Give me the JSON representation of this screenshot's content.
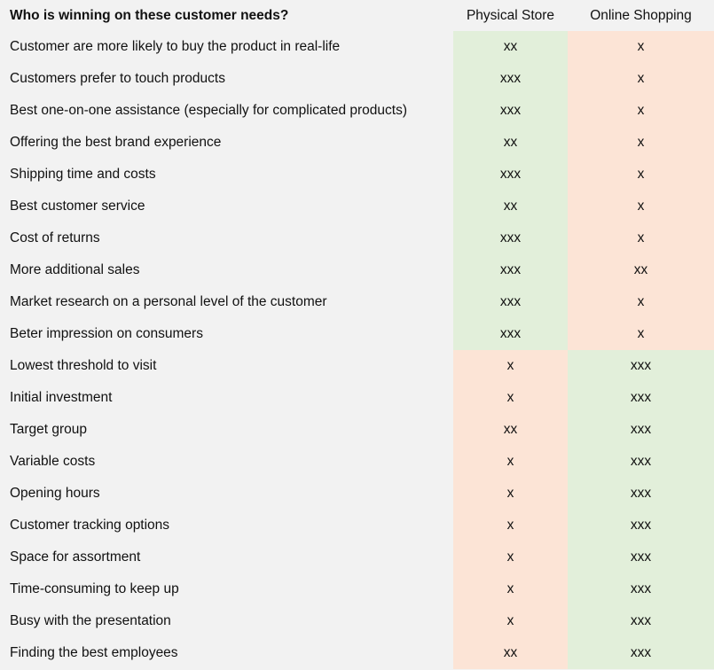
{
  "header": {
    "question": "Who is winning on these customer needs?",
    "col1": "Physical Store",
    "col2": "Online Shopping"
  },
  "colors": {
    "winner": "#e2efda",
    "loser": "#fce4d6",
    "background": "#f2f2f2"
  },
  "rows": [
    {
      "need": "Customer are more likely to buy the product in real-life",
      "store": "xx",
      "online": "x"
    },
    {
      "need": "Customers prefer to touch products",
      "store": "xxx",
      "online": "x"
    },
    {
      "need": "Best one-on-one assistance (especially for complicated products)",
      "store": "xxx",
      "online": "x"
    },
    {
      "need": "Offering the best brand experience",
      "store": "xx",
      "online": "x"
    },
    {
      "need": "Shipping time and costs",
      "store": "xxx",
      "online": "x"
    },
    {
      "need": "Best customer service",
      "store": "xx",
      "online": "x"
    },
    {
      "need": "Cost of returns",
      "store": "xxx",
      "online": "x"
    },
    {
      "need": "More additional sales",
      "store": "xxx",
      "online": "xx"
    },
    {
      "need": "Market research on a personal level of the customer",
      "store": "xxx",
      "online": "x"
    },
    {
      "need": "Beter impression on consumers",
      "store": "xxx",
      "online": "x"
    },
    {
      "need": "Lowest threshold to visit",
      "store": "x",
      "online": "xxx"
    },
    {
      "need": "Initial investment",
      "store": "x",
      "online": "xxx"
    },
    {
      "need": "Target group",
      "store": "xx",
      "online": "xxx"
    },
    {
      "need": "Variable costs",
      "store": "x",
      "online": "xxx"
    },
    {
      "need": "Opening hours",
      "store": "x",
      "online": "xxx"
    },
    {
      "need": "Customer tracking options",
      "store": "x",
      "online": "xxx"
    },
    {
      "need": "Space for assortment",
      "store": "x",
      "online": "xxx"
    },
    {
      "need": "Time-consuming to keep up",
      "store": "x",
      "online": "xxx"
    },
    {
      "need": "Busy with the presentation",
      "store": "x",
      "online": "xxx"
    },
    {
      "need": "Finding the best employees",
      "store": "xx",
      "online": "xxx"
    }
  ]
}
